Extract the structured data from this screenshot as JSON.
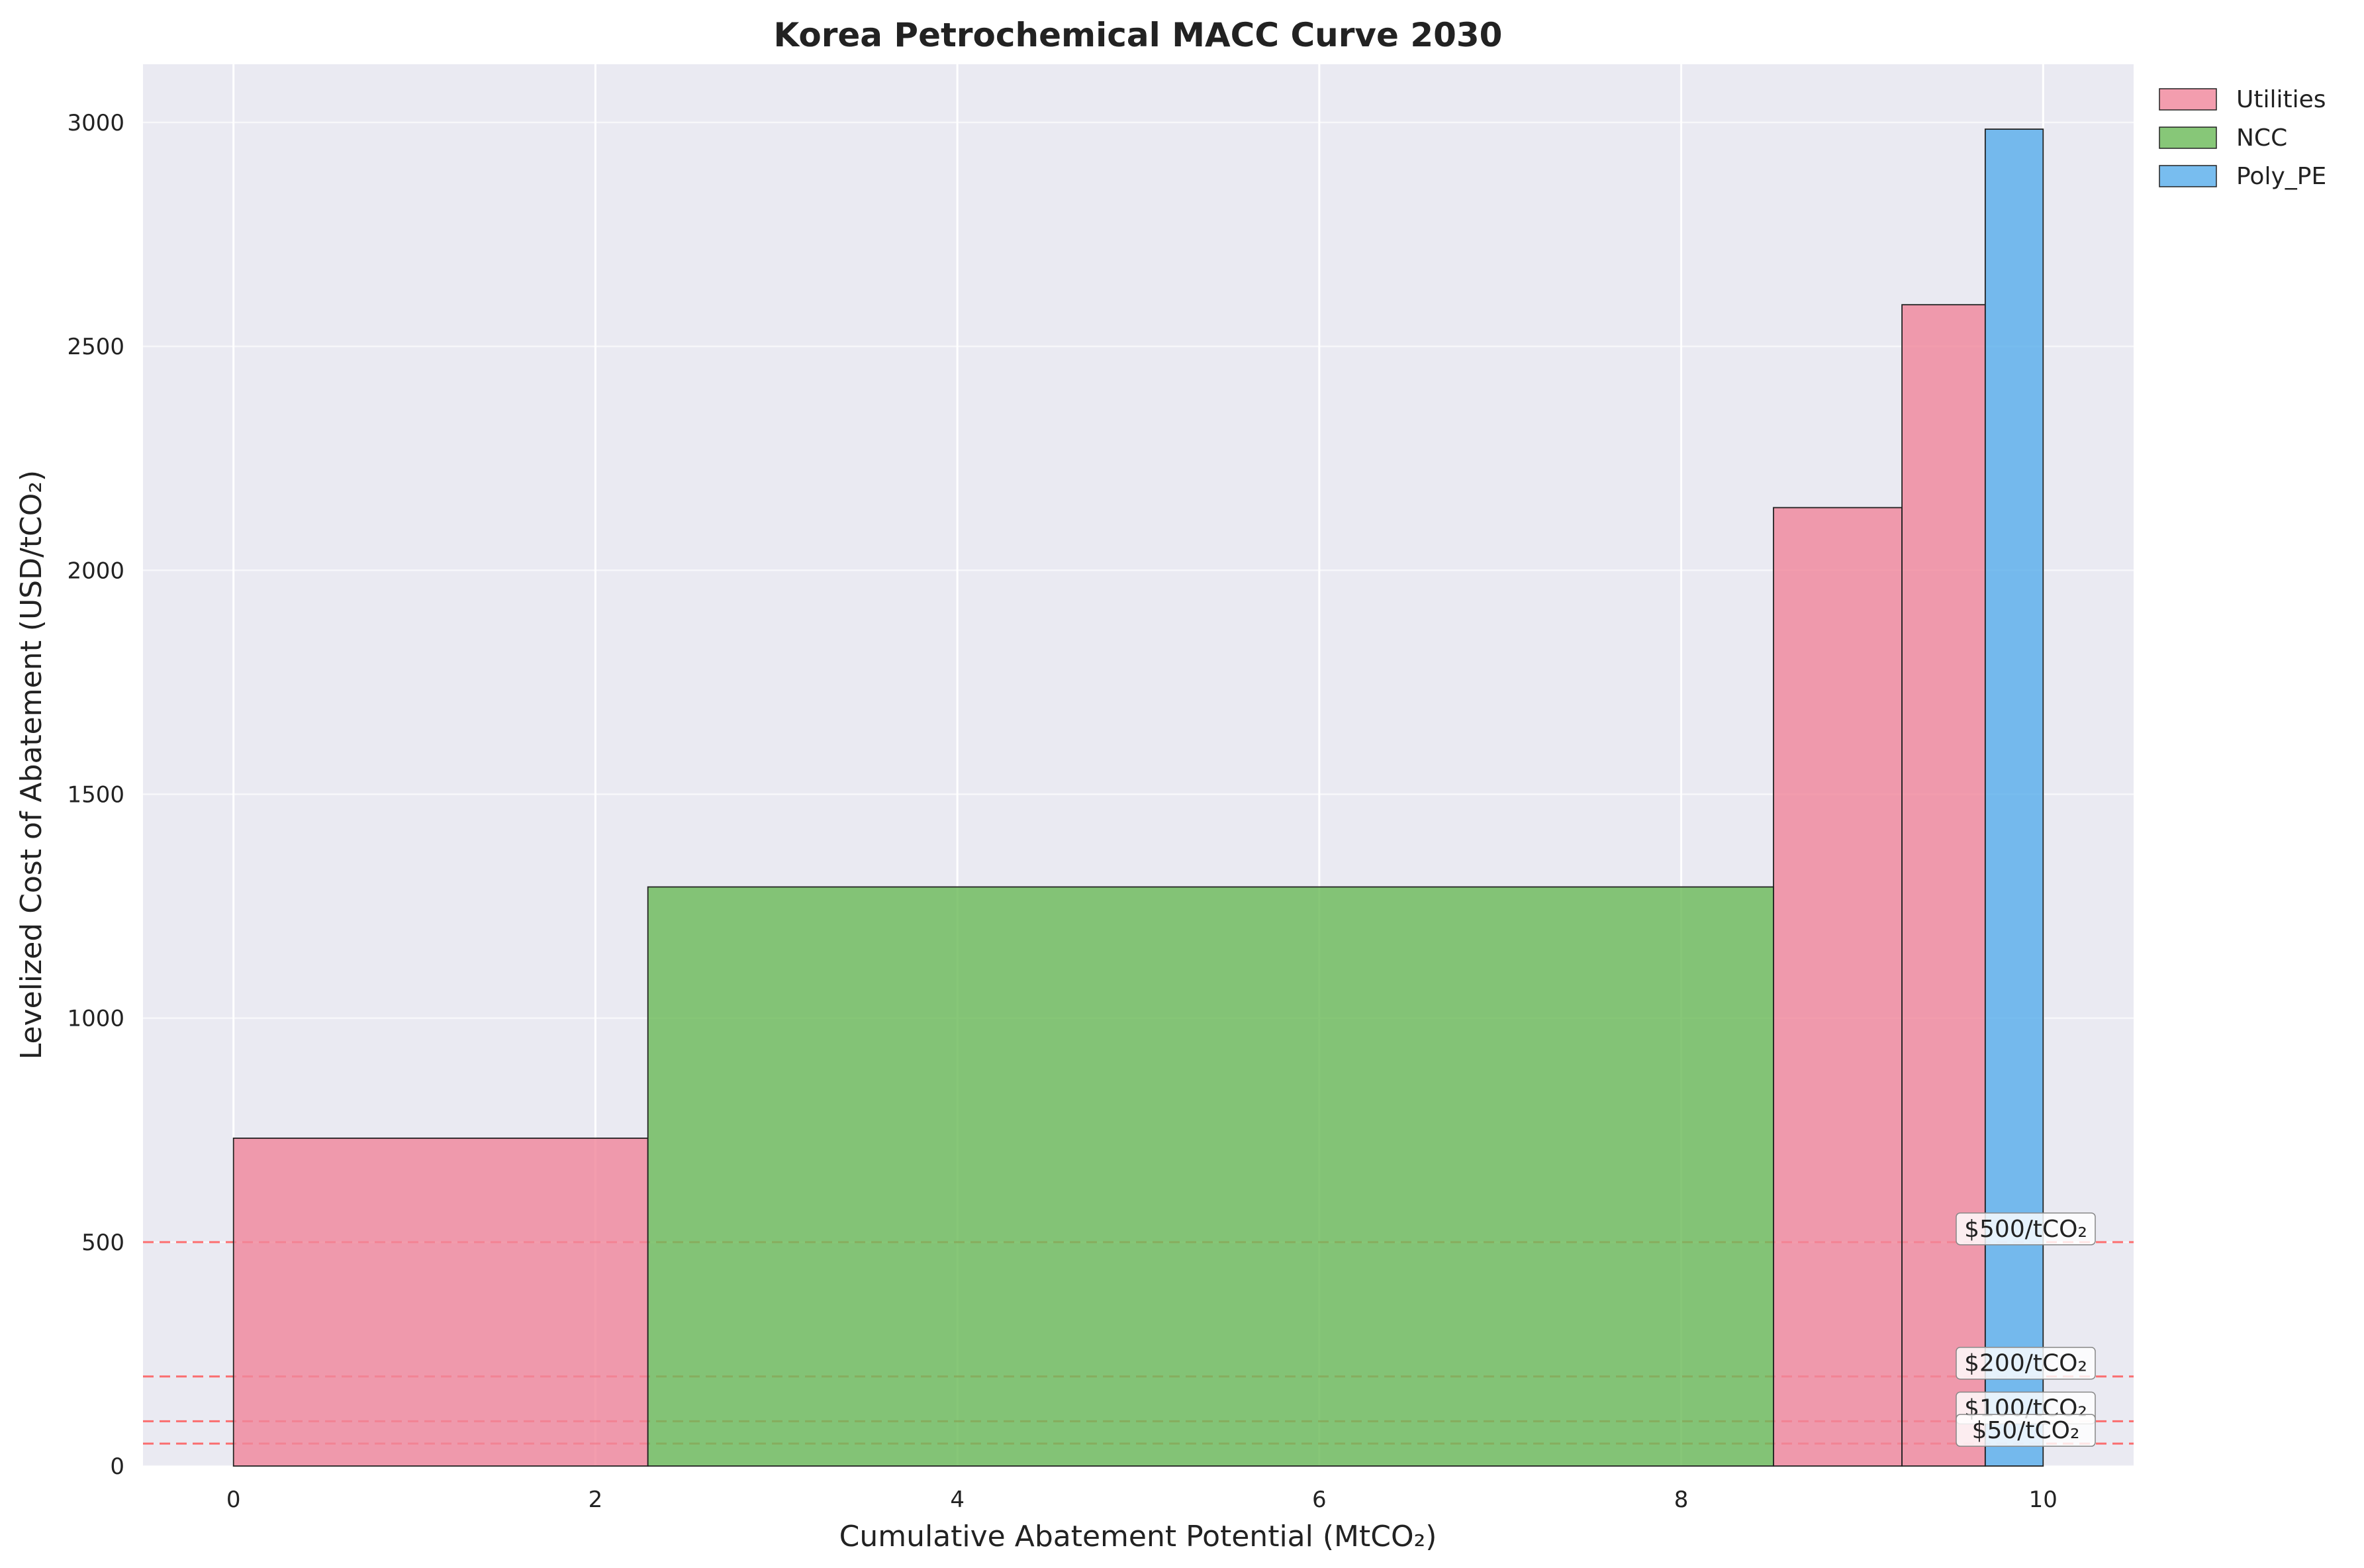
{
  "chart_data": {
    "type": "bar",
    "title": "Korea Petrochemical MACC Curve 2030",
    "xlabel": "Cumulative Abatement Potential (MtCO₂)",
    "ylabel": "Levelized Cost of Abatement (USD/tCO₂)",
    "xlim": [
      -0.5,
      10.5
    ],
    "ylim": [
      0,
      3130
    ],
    "xticks": [
      0,
      2,
      4,
      6,
      8,
      10
    ],
    "yticks": [
      0,
      500,
      1000,
      1500,
      2000,
      2500,
      3000
    ],
    "grid": true,
    "legend_position": "outside-top-right",
    "colors": {
      "Utilities": "#f0889c",
      "NCC": "#6dbb5a",
      "Poly_PE": "#5aaeeb",
      "reference_line": "#ff4444",
      "plot_background": "#eaeaf2"
    },
    "series": [
      {
        "name": "Utilities",
        "bars": [
          {
            "x_start": 0.0,
            "x_end": 2.29,
            "value": 732
          },
          {
            "x_start": 8.51,
            "x_end": 9.22,
            "value": 2140
          },
          {
            "x_start": 9.22,
            "x_end": 9.68,
            "value": 2593
          }
        ]
      },
      {
        "name": "NCC",
        "bars": [
          {
            "x_start": 2.29,
            "x_end": 8.51,
            "value": 1293
          }
        ]
      },
      {
        "name": "Poly_PE",
        "bars": [
          {
            "x_start": 9.68,
            "x_end": 10.0,
            "value": 2985
          }
        ]
      }
    ],
    "reference_lines": [
      {
        "value": 500,
        "label": "$500/tCO₂"
      },
      {
        "value": 200,
        "label": "$200/tCO₂"
      },
      {
        "value": 100,
        "label": "$100/tCO₂"
      },
      {
        "value": 50,
        "label": "$50/tCO₂"
      }
    ]
  }
}
